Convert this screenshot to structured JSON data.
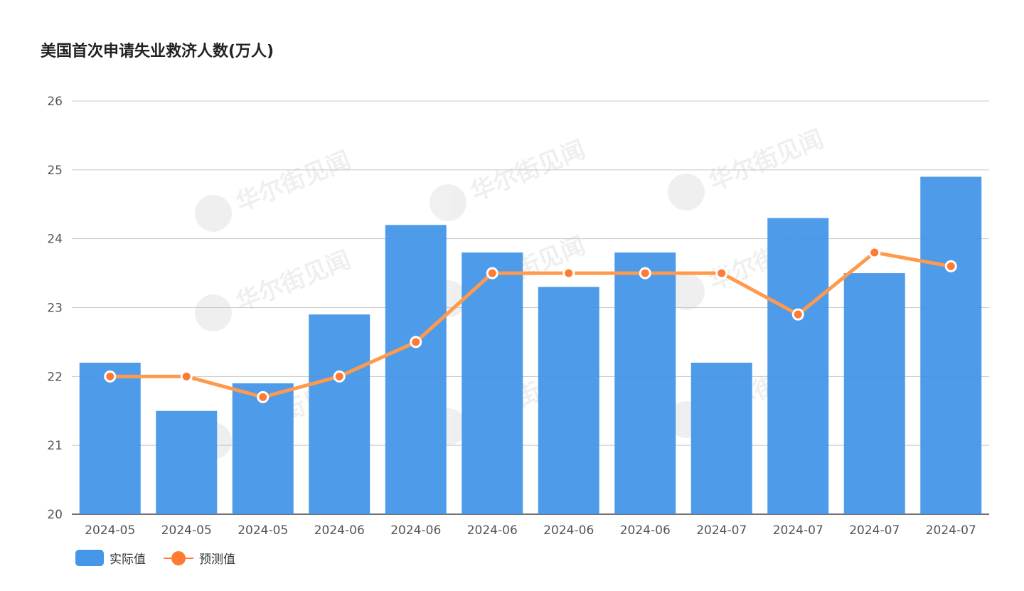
{
  "watermark": "华尔街见闻",
  "colors": {
    "bar": "#4596e8",
    "line": "#ff9a4d",
    "marker": "#ff7a33"
  },
  "chart_data": {
    "type": "bar+line",
    "title": "美国首次申请失业救济人数(万人)",
    "categories": [
      "2024-05",
      "2024-05",
      "2024-05",
      "2024-06",
      "2024-06",
      "2024-06",
      "2024-06",
      "2024-06",
      "2024-07",
      "2024-07",
      "2024-07",
      "2024-07"
    ],
    "series": [
      {
        "name": "实际值",
        "type": "bar",
        "values": [
          22.2,
          21.5,
          21.9,
          22.9,
          24.2,
          23.8,
          23.3,
          23.8,
          22.2,
          24.3,
          23.5,
          24.9
        ]
      },
      {
        "name": "预测值",
        "type": "line",
        "values": [
          22,
          22,
          21.7,
          22,
          22.5,
          23.5,
          23.5,
          23.5,
          23.5,
          22.9,
          23.8,
          23.6
        ]
      }
    ],
    "ylim": [
      20,
      26
    ],
    "yticks": [
      "20",
      "21",
      "22",
      "23",
      "24",
      "25",
      "26"
    ],
    "grid": true,
    "legend": "bottom-left"
  }
}
